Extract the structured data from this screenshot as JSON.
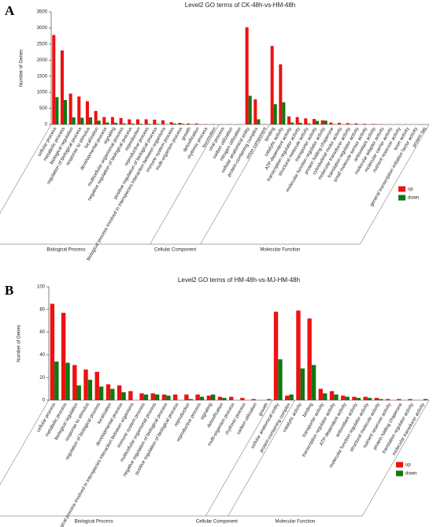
{
  "chart_data": [
    {
      "type": "bar",
      "panel": "A",
      "title": "Level2 GO terms of CK-48h-vs-HM-48h",
      "y_label": "Number of Genes",
      "ylim": [
        0,
        3500
      ],
      "yticks": [
        0,
        500,
        1000,
        1500,
        2000,
        2500,
        3000,
        3500
      ],
      "groups": [
        {
          "name": "Biological Process",
          "categories": [
            "cellular process",
            "metabolic process",
            "biological regulation",
            "regulation of biological process",
            "response to stimulus",
            "localization",
            "developmental process",
            "signaling",
            "multicellular organismal process",
            "negative regulation of biological process",
            "reproduction",
            "reproductive process",
            "positive regulation of biological process",
            "biological process involved in interspecies interaction between organisms",
            "immune system process",
            "multi-organism process",
            "growth",
            "detoxification",
            "rhythmic process",
            "locomotion"
          ]
        },
        {
          "name": "Cellular Component",
          "categories": [
            "viral process",
            "carbon utilization",
            "nitrogen utilization",
            "cellular anatomical entity",
            "protein-containing complex",
            "virion component"
          ]
        },
        {
          "name": "Molecular Function",
          "categories": [
            "binding",
            "catalytic activity",
            "ATP-dependent activity",
            "transcription regulator activity",
            "structural molecule activity",
            "transporter activity",
            "molecular function regulator activity",
            "protein folding chaperone",
            "cytoskeletal motor activity",
            "molecular transducer activity",
            "translation regulator activity",
            "small molecule sensor activity",
            "antioxidant activity",
            "molecular adaptor activity",
            "molecular carrier activity",
            "nutrient reservoir activity",
            "toxin activity",
            "general transcription initiation factor activity",
            "protein tag"
          ]
        }
      ],
      "series": [
        {
          "name": "up",
          "color": "#ee1111",
          "values": [
            2780,
            2300,
            960,
            870,
            720,
            420,
            230,
            230,
            200,
            160,
            160,
            160,
            150,
            130,
            70,
            50,
            30,
            30,
            10,
            5,
            3,
            3,
            3,
            3020,
            780,
            10,
            2440,
            1870,
            250,
            230,
            190,
            170,
            130,
            60,
            50,
            40,
            30,
            20,
            15,
            10,
            5,
            5,
            3,
            2,
            2
          ]
        },
        {
          "name": "down",
          "color": "#117711",
          "values": [
            850,
            760,
            220,
            210,
            220,
            120,
            60,
            50,
            30,
            30,
            20,
            20,
            20,
            10,
            30,
            20,
            10,
            5,
            0,
            0,
            0,
            0,
            0,
            890,
            160,
            0,
            630,
            690,
            60,
            50,
            30,
            110,
            120,
            10,
            5,
            10,
            5,
            0,
            10,
            0,
            0,
            0,
            0,
            0,
            0
          ]
        }
      ]
    },
    {
      "type": "bar",
      "panel": "B",
      "title": "Level2 GO terms of HM-48h-vs-MJ-HM-48h",
      "y_label": "Number of Genes",
      "ylim": [
        0,
        100
      ],
      "yticks": [
        0,
        20,
        40,
        60,
        80,
        100
      ],
      "groups": [
        {
          "name": "Biological Process",
          "categories": [
            "cellular process",
            "metabolic process",
            "biological regulation",
            "response to stimulus",
            "regulation of biological process",
            "localization",
            "developmental process",
            "biological process involved in interspecies interaction between organisms",
            "immune system process",
            "multicellular organismal process",
            "negative regulation of biological process",
            "positive regulation of biological process",
            "reproduction",
            "reproductive process",
            "signaling",
            "detoxification",
            "multi-organism process",
            "rhythmic process",
            "carbon utilization",
            "growth"
          ]
        },
        {
          "name": "Cellular Component",
          "categories": [
            "cellular anatomical entity",
            "protein-containing complex"
          ]
        },
        {
          "name": "Molecular Function",
          "categories": [
            "catalytic activity",
            "binding",
            "transporter activity",
            "transcription regulator activity",
            "ATP-dependent activity",
            "antioxidant activity",
            "molecular function regulator activity",
            "structural molecule activity",
            "nutrient reservoir activity",
            "protein folding chaperone",
            "translation regulator activity",
            "molecular transducer activity"
          ]
        }
      ],
      "series": [
        {
          "name": "up",
          "color": "#ee1111",
          "values": [
            85,
            77,
            31,
            27,
            25,
            14,
            13,
            8,
            6,
            6,
            5,
            5,
            5,
            5,
            4,
            3,
            3,
            2,
            1,
            0,
            78,
            4,
            79,
            72,
            10,
            8,
            4,
            3,
            3,
            2,
            1,
            1,
            1,
            0
          ]
        },
        {
          "name": "down",
          "color": "#117711",
          "values": [
            34,
            33,
            13,
            18,
            12,
            10,
            7,
            0,
            5,
            5,
            4,
            0,
            1,
            3,
            5,
            2,
            0,
            0,
            0,
            1,
            36,
            5,
            28,
            31,
            6,
            5,
            3,
            2,
            2,
            1,
            0,
            0,
            0,
            1
          ]
        }
      ]
    }
  ]
}
